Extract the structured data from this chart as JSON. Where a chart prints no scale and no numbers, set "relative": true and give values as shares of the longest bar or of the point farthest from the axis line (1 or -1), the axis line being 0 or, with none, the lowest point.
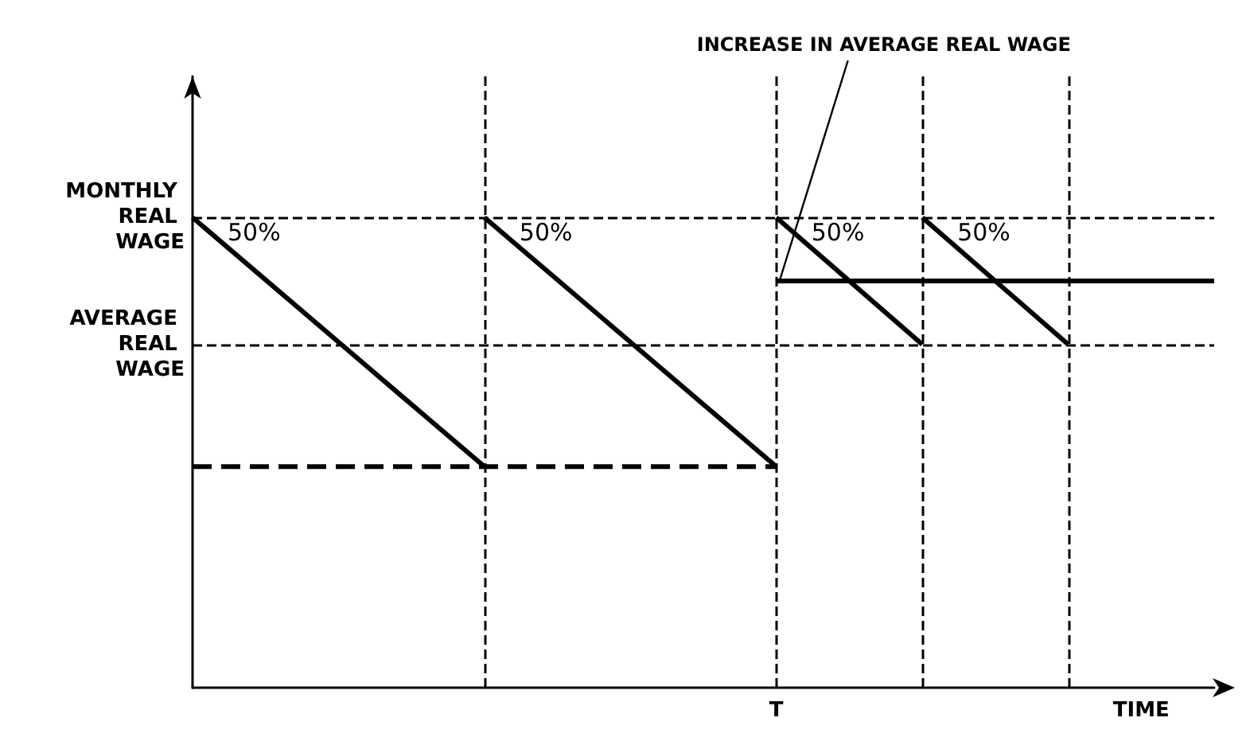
{
  "chart_data": {
    "type": "line",
    "relative": true,
    "xlabel": "TIME",
    "categories": [
      null,
      null,
      null,
      null,
      null,
      null,
      null,
      null
    ],
    "grid": false,
    "marker": "none",
    "series": [
      {
        "color": "#000000",
        "values": [
          1,
          0.735,
          0.47,
          null,
          null,
          null,
          null,
          null
        ]
      },
      {
        "color": "#000000",
        "values": [
          null,
          null,
          1,
          0.735,
          0.47,
          null,
          null,
          null
        ]
      },
      {
        "color": "#000000",
        "values": [
          null,
          null,
          null,
          null,
          1,
          0.73,
          null,
          null
        ]
      },
      {
        "color": "#000000",
        "values": [
          null,
          null,
          null,
          null,
          null,
          1,
          0.73,
          null
        ]
      },
      {
        "color": "#000000",
        "line_style": "dashed",
        "values": [
          0.47,
          0.47,
          0.47,
          0.47,
          0.47,
          null,
          null,
          null
        ]
      },
      {
        "color": "#000000",
        "values": [
          null,
          null,
          null,
          null,
          0.865,
          0.865,
          0.865,
          0.865
        ]
      }
    ],
    "ref_lines": [
      {
        "axis": "y",
        "value": 1,
        "label": "MONTHLY REAL WAGE",
        "line_style": "dashed",
        "color": "#000000"
      },
      {
        "axis": "y",
        "value": 0.73,
        "label": "AVERAGE REAL WAGE",
        "line_style": "dashed",
        "color": "#000000"
      }
    ],
    "annotations": [
      "50%",
      "50%",
      "50%",
      "50%",
      "INCREASE IN AVERAGE REAL WAGE",
      "T"
    ]
  }
}
